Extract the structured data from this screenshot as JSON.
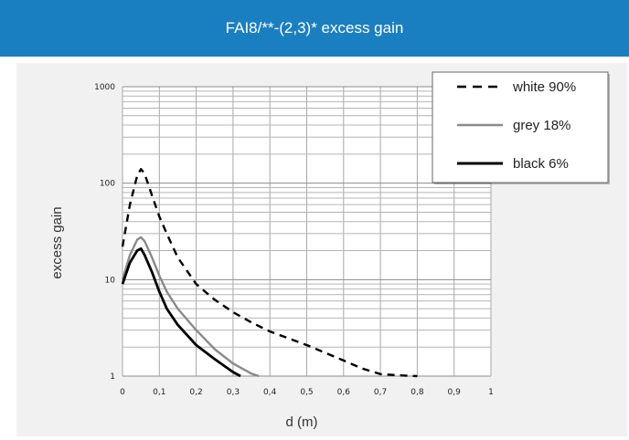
{
  "header": {
    "title": "FAI8/**-(2,3)* excess gain",
    "color": "#1a7fc1"
  },
  "chart_data": {
    "type": "line",
    "title": "FAI8/**-(2,3)* excess gain",
    "xlabel": "d (m)",
    "ylabel": "excess gain",
    "xlim": [
      0,
      1
    ],
    "ylim": [
      1,
      1000
    ],
    "yscale": "log",
    "grid": true,
    "legend": "top-right",
    "x_ticks": [
      "0",
      "0,1",
      "0,2",
      "0,3",
      "0,4",
      "0,5",
      "0,6",
      "0,7",
      "0,8",
      "0,9",
      "1"
    ],
    "y_ticks": [
      "1",
      "10",
      "100",
      "1000"
    ],
    "series": [
      {
        "name": "white 90%",
        "style": "dashed",
        "color": "#000000",
        "x": [
          0,
          0.02,
          0.04,
          0.05,
          0.06,
          0.08,
          0.1,
          0.12,
          0.15,
          0.2,
          0.25,
          0.3,
          0.35,
          0.4,
          0.5,
          0.6,
          0.65,
          0.7,
          0.75,
          0.8
        ],
        "y": [
          22,
          60,
          120,
          140,
          125,
          75,
          45,
          30,
          17,
          9,
          6.2,
          4.6,
          3.6,
          2.9,
          2.1,
          1.45,
          1.2,
          1.05,
          1.02,
          1.0
        ]
      },
      {
        "name": "grey 18%",
        "style": "solid",
        "color": "#8a8a8a",
        "x": [
          0,
          0.02,
          0.04,
          0.05,
          0.06,
          0.08,
          0.1,
          0.12,
          0.15,
          0.2,
          0.25,
          0.3,
          0.35,
          0.37
        ],
        "y": [
          10,
          18,
          26,
          27.5,
          25,
          17,
          11,
          7.5,
          5,
          3,
          1.9,
          1.35,
          1.06,
          1.0
        ]
      },
      {
        "name": "black 6%",
        "style": "solid",
        "color": "#000000",
        "x": [
          0,
          0.02,
          0.04,
          0.05,
          0.06,
          0.08,
          0.1,
          0.12,
          0.15,
          0.2,
          0.25,
          0.3,
          0.32
        ],
        "y": [
          9,
          15,
          20,
          21,
          18,
          12,
          7.5,
          5,
          3.4,
          2.1,
          1.5,
          1.1,
          1.0
        ]
      }
    ]
  }
}
